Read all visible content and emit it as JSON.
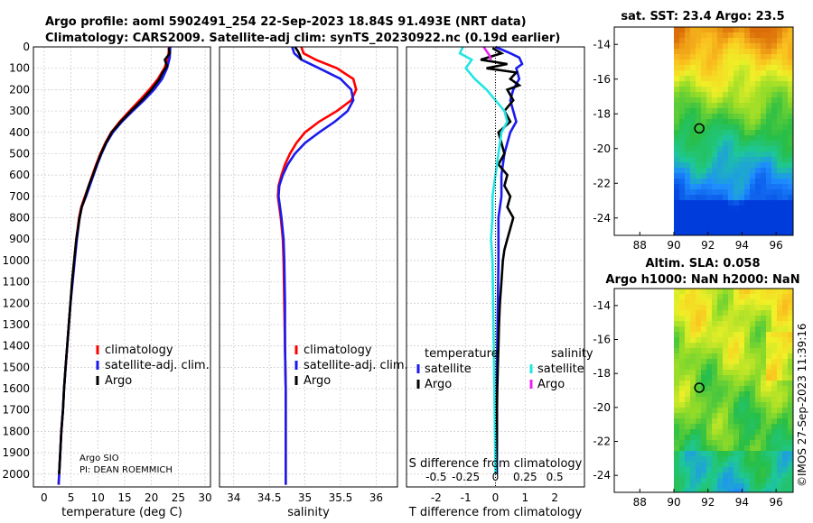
{
  "title_line1": "Argo profile: aoml 5902491_254 22-Sep-2023 18.84S 91.493E (NRT data)",
  "title_line2": "Climatology: CARS2009. Satellite-adj clim: synTS_20230922.nc (0.19d earlier)",
  "footer_credit": "©IMOS 27-Sep-2023 11:39:16",
  "pi_text": [
    "Argo SIO",
    "PI: DEAN ROEMMICH"
  ],
  "colors": {
    "climatology": "#ff0000",
    "satellite": "#1a1aee",
    "argo": "#000000",
    "sal_satellite": "#22e5e5",
    "sal_argo": "#ee22ee"
  },
  "chart_data": [
    {
      "type": "line",
      "name": "temperature",
      "xlabel": "temperature (deg C)",
      "xlim": [
        -2,
        31
      ],
      "ylim": [
        2060,
        0
      ],
      "xticks": [
        0,
        5,
        10,
        15,
        20,
        25,
        30
      ],
      "yticks": [
        0,
        100,
        200,
        300,
        400,
        500,
        600,
        700,
        800,
        900,
        1000,
        1100,
        1200,
        1300,
        1400,
        1500,
        1600,
        1700,
        1800,
        1900,
        2000
      ],
      "legend": [
        "climatology",
        "satellite-adj. clim.",
        "Argo"
      ],
      "series": [
        {
          "name": "climatology",
          "depth": [
            0,
            50,
            100,
            150,
            200,
            250,
            300,
            350,
            400,
            450,
            500,
            550,
            600,
            650,
            700,
            750,
            800,
            900,
            1000,
            1100,
            1200,
            1300,
            1400,
            1500,
            1600,
            1700,
            1800,
            1900,
            2000,
            2050
          ],
          "values": [
            23.3,
            23.1,
            22.4,
            21.2,
            19.6,
            17.8,
            15.9,
            14.1,
            12.5,
            11.4,
            10.5,
            9.7,
            9.0,
            8.3,
            7.6,
            6.9,
            6.5,
            6.0,
            5.6,
            5.2,
            4.9,
            4.6,
            4.3,
            4.0,
            3.7,
            3.5,
            3.2,
            3.0,
            2.8,
            2.7
          ]
        },
        {
          "name": "satellite-adj. clim.",
          "depth": [
            0,
            50,
            100,
            150,
            200,
            250,
            300,
            350,
            400,
            450,
            500,
            550,
            600,
            650,
            700,
            750,
            800,
            900,
            1000,
            1100,
            1200,
            1300,
            1400,
            1500,
            1600,
            1700,
            1800,
            1900,
            2000,
            2050
          ],
          "values": [
            23.5,
            23.4,
            22.9,
            22.0,
            20.5,
            18.6,
            16.5,
            14.5,
            12.8,
            11.6,
            10.7,
            9.9,
            9.2,
            8.5,
            7.8,
            7.0,
            6.6,
            6.1,
            5.7,
            5.3,
            4.9,
            4.6,
            4.3,
            4.0,
            3.7,
            3.5,
            3.2,
            3.0,
            2.8,
            2.7
          ]
        },
        {
          "name": "Argo",
          "depth": [
            5,
            30,
            60,
            90,
            120,
            150,
            200,
            250,
            300,
            350,
            400,
            450,
            500,
            550,
            600,
            650,
            700,
            750,
            800,
            900,
            1000,
            1100,
            1200,
            1300,
            1400,
            1500,
            1600,
            1700,
            1800,
            1900,
            2000
          ],
          "values": [
            23.2,
            23.4,
            22.5,
            22.9,
            22.1,
            21.5,
            20.0,
            18.2,
            16.2,
            14.3,
            12.6,
            11.5,
            10.6,
            9.8,
            9.1,
            8.3,
            7.7,
            7.0,
            6.6,
            6.0,
            5.6,
            5.2,
            4.9,
            4.6,
            4.3,
            4.0,
            3.7,
            3.5,
            3.2,
            3.0,
            2.8
          ]
        }
      ]
    },
    {
      "type": "line",
      "name": "salinity",
      "xlabel": "salinity",
      "xlim": [
        33.8,
        36.3
      ],
      "ylim": [
        2060,
        0
      ],
      "xticks": [
        34,
        34.5,
        35,
        35.5,
        36
      ],
      "legend": [
        "climatology",
        "satellite-adj. clim.",
        "Argo"
      ],
      "series": [
        {
          "name": "climatology",
          "depth": [
            0,
            30,
            60,
            100,
            150,
            200,
            250,
            300,
            350,
            400,
            450,
            500,
            550,
            600,
            650,
            700,
            750,
            800,
            900,
            1000,
            1200,
            1400,
            1600,
            1800,
            2000,
            2050
          ],
          "values": [
            34.95,
            34.98,
            35.15,
            35.45,
            35.68,
            35.72,
            35.65,
            35.45,
            35.2,
            35.0,
            34.88,
            34.79,
            34.72,
            34.67,
            34.63,
            34.62,
            34.64,
            34.66,
            34.69,
            34.7,
            34.71,
            34.72,
            34.73,
            34.73,
            34.73,
            34.73
          ]
        },
        {
          "name": "satellite-adj. clim.",
          "depth": [
            0,
            30,
            60,
            100,
            150,
            200,
            250,
            300,
            350,
            400,
            450,
            500,
            550,
            600,
            650,
            700,
            750,
            800,
            900,
            1000,
            1200,
            1400,
            1600,
            1800,
            2000,
            2050
          ],
          "values": [
            34.82,
            34.85,
            34.95,
            35.2,
            35.5,
            35.65,
            35.68,
            35.6,
            35.42,
            35.2,
            35.0,
            34.86,
            34.76,
            34.69,
            34.64,
            34.63,
            34.65,
            34.67,
            34.7,
            34.71,
            34.72,
            34.72,
            34.73,
            34.73,
            34.73,
            34.73
          ]
        },
        {
          "name": "Argo",
          "depth": [
            0,
            20,
            40,
            60
          ],
          "values": [
            34.86,
            34.9,
            34.93,
            34.95
          ]
        }
      ]
    },
    {
      "type": "line",
      "name": "difference",
      "xlabel": "T difference from climatology",
      "top_label": "S difference from climatology",
      "xlim": [
        -3,
        3
      ],
      "ylim": [
        2060,
        0
      ],
      "xticks": [
        -2,
        -1,
        0,
        1,
        2
      ],
      "top_ticks": [
        "-0.5",
        "-0.25",
        "0",
        "0.25",
        "0.5"
      ],
      "top_tick_values": [
        -2,
        -1,
        0,
        1,
        2
      ],
      "legend_temperature_title": "temperature",
      "legend_salinity_title": "salinity",
      "legend_labels": [
        "satellite",
        "Argo"
      ],
      "series": [
        {
          "name": "T satellite",
          "depth": [
            0,
            30,
            50,
            80,
            100,
            150,
            200,
            250,
            300,
            350,
            400,
            450,
            500,
            600,
            700,
            800,
            900,
            1000,
            1500,
            2000
          ],
          "values": [
            0.0,
            0.5,
            0.8,
            0.9,
            0.7,
            0.8,
            0.6,
            0.5,
            0.6,
            0.7,
            0.5,
            0.4,
            0.3,
            0.2,
            0.2,
            0.1,
            0.1,
            0.1,
            0.05,
            0.05
          ]
        },
        {
          "name": "T Argo",
          "depth": [
            5,
            30,
            60,
            80,
            100,
            120,
            150,
            180,
            200,
            250,
            300,
            350,
            400,
            450,
            500,
            550,
            600,
            650,
            700,
            750,
            800,
            850,
            900,
            950,
            1000,
            1100,
            1200,
            1300,
            1400,
            1500,
            1600,
            1700,
            1800,
            1900,
            2000
          ],
          "values": [
            -0.1,
            0.2,
            -0.5,
            0.4,
            -0.3,
            0.7,
            0.5,
            0.8,
            0.4,
            0.6,
            0.3,
            0.5,
            0.1,
            0.2,
            0.3,
            0.1,
            0.4,
            0.3,
            0.5,
            0.4,
            0.6,
            0.5,
            0.4,
            0.3,
            0.25,
            0.2,
            0.15,
            0.12,
            0.1,
            0.08,
            0.06,
            0.05,
            0.05,
            0.04,
            0.03
          ]
        },
        {
          "name": "S satellite",
          "depth": [
            0,
            30,
            60,
            100,
            150,
            200,
            250,
            300,
            350,
            400,
            500,
            600,
            700,
            800,
            900,
            1000,
            1500,
            2000
          ],
          "values": [
            -1.1,
            -1.2,
            -0.8,
            -1.0,
            -0.7,
            -0.3,
            0.0,
            0.3,
            0.4,
            0.2,
            0.1,
            0.0,
            -0.1,
            -0.1,
            -0.15,
            -0.1,
            -0.05,
            0.0
          ]
        },
        {
          "name": "S Argo",
          "depth": [
            0,
            20,
            40,
            60
          ],
          "values": [
            -0.4,
            -0.3,
            -0.2,
            -0.15
          ]
        }
      ]
    },
    {
      "type": "heatmap",
      "name": "sst-map",
      "title": "sat. SST: 23.4 Argo: 23.5",
      "xticks": [
        88,
        90,
        92,
        94,
        96
      ],
      "yticks": [
        -14,
        -16,
        -18,
        -20,
        -22,
        -24
      ],
      "xlim": [
        86.5,
        97
      ],
      "ylim": [
        -25,
        -13
      ],
      "marker": {
        "lon": 91.493,
        "lat": -18.84
      }
    },
    {
      "type": "heatmap",
      "name": "sla-map",
      "title": "Altim. SLA: 0.058",
      "subtitle": "Argo h1000: NaN h2000: NaN",
      "xticks": [
        88,
        90,
        92,
        94,
        96
      ],
      "yticks": [
        -14,
        -16,
        -18,
        -20,
        -22,
        -24
      ],
      "xlim": [
        86.5,
        97
      ],
      "ylim": [
        -25,
        -13
      ],
      "marker": {
        "lon": 91.493,
        "lat": -18.84
      }
    }
  ]
}
